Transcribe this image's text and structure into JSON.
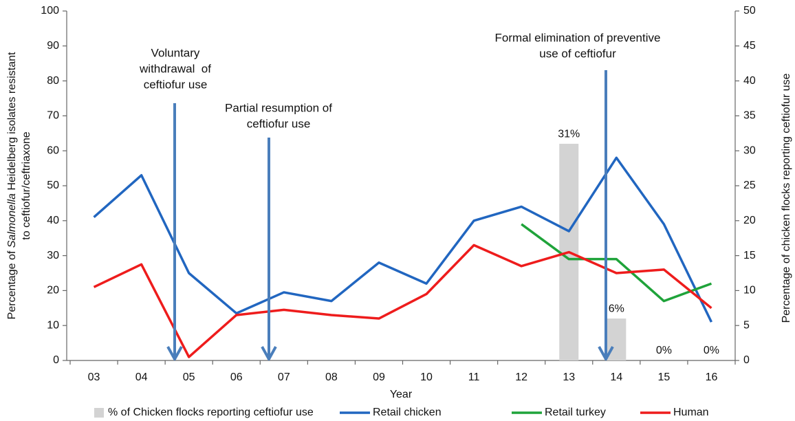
{
  "chart_data": {
    "type": "line",
    "xlabel": "Year",
    "ylabel": [
      [
        {
          "text": "Percentage of "
        },
        {
          "text": "Salmonella",
          "italic": true
        },
        {
          "text": " Heidelberg isolates resistant"
        }
      ],
      [
        {
          "text": "to ceftiofur/ceftriaxone"
        }
      ]
    ],
    "y2label": "Percentage of chicken flocks reporting ceftiofur use",
    "categories": [
      "03",
      "04",
      "05",
      "06",
      "07",
      "08",
      "09",
      "10",
      "11",
      "12",
      "13",
      "14",
      "15",
      "16"
    ],
    "ylim": [
      0,
      100
    ],
    "yticks": [
      0,
      10,
      20,
      30,
      40,
      50,
      60,
      70,
      80,
      90,
      100
    ],
    "y2lim": [
      0,
      50
    ],
    "y2ticks": [
      0,
      5,
      10,
      15,
      20,
      25,
      30,
      35,
      40,
      45,
      50
    ],
    "series": [
      {
        "name": "% of Chicken flocks reporting ceftiofur use",
        "type": "bar",
        "axis": "y2",
        "color": "#d3d3d3",
        "values": [
          null,
          null,
          null,
          null,
          null,
          null,
          null,
          null,
          null,
          null,
          31,
          6,
          0,
          0
        ],
        "value_labels": [
          null,
          null,
          null,
          null,
          null,
          null,
          null,
          null,
          null,
          null,
          "31%",
          "6%",
          "0%",
          "0%"
        ]
      },
      {
        "name": "Retail chicken",
        "color": "#2166c0",
        "values": [
          41,
          53,
          25,
          13.5,
          19.5,
          17,
          28,
          22,
          40,
          44,
          37,
          58,
          39,
          11
        ]
      },
      {
        "name": "Retail turkey",
        "color": "#1fa33a",
        "values": [
          null,
          null,
          null,
          null,
          null,
          null,
          null,
          null,
          null,
          39,
          29,
          29,
          17,
          22
        ]
      },
      {
        "name": "Human",
        "color": "#ee1c1c",
        "values": [
          21,
          27.5,
          1,
          13,
          14.5,
          13,
          12,
          19,
          33,
          27,
          31,
          25,
          26,
          15
        ]
      }
    ],
    "annotations": [
      {
        "lines": [
          "Voluntary",
          "withdrawal  of",
          "ceftiofur use"
        ]
      },
      {
        "lines": [
          "Partial resumption of",
          "ceftiofur use"
        ]
      },
      {
        "lines": [
          "Formal elimination of preventive",
          "use of ceftiofur"
        ]
      }
    ]
  }
}
